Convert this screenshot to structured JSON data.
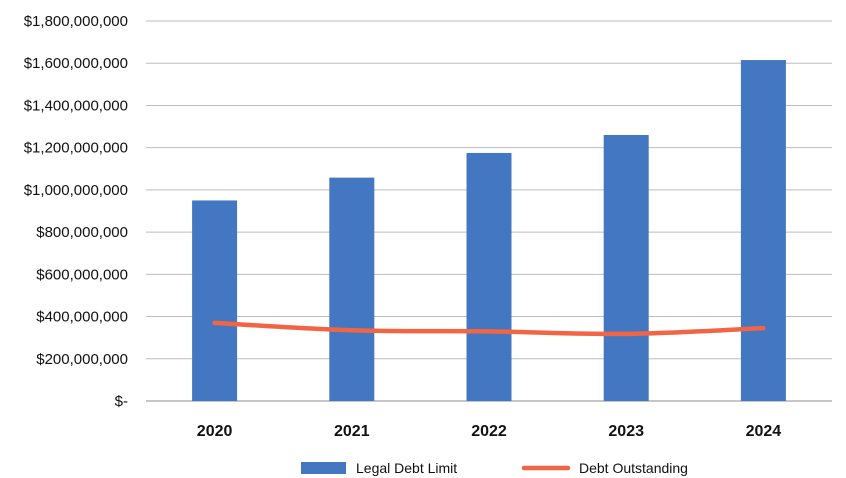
{
  "chart_data": {
    "type": "bar",
    "categories": [
      "2020",
      "2021",
      "2022",
      "2023",
      "2024"
    ],
    "ylim": [
      0,
      1800000000
    ],
    "y_ticks": [
      {
        "value": 0,
        "label": "$-"
      },
      {
        "value": 200000000,
        "label": "$200,000,000"
      },
      {
        "value": 400000000,
        "label": "$400,000,000"
      },
      {
        "value": 600000000,
        "label": "$600,000,000"
      },
      {
        "value": 800000000,
        "label": "$800,000,000"
      },
      {
        "value": 1000000000,
        "label": "$1,000,000,000"
      },
      {
        "value": 1200000000,
        "label": "$1,200,000,000"
      },
      {
        "value": 1400000000,
        "label": "$1,400,000,000"
      },
      {
        "value": 1600000000,
        "label": "$1,600,000,000"
      },
      {
        "value": 1800000000,
        "label": "$1,800,000,000"
      }
    ],
    "grid": true,
    "legend_position": "bottom",
    "series": [
      {
        "name": "Legal Debt Limit",
        "type": "bar",
        "color": "#4477C1",
        "values": [
          950000000,
          1058000000,
          1175000000,
          1260000000,
          1615000000
        ]
      },
      {
        "name": "Debt Outstanding",
        "type": "line",
        "color": "#F26544",
        "values": [
          370000000,
          335000000,
          330000000,
          318000000,
          345000000
        ]
      }
    ]
  }
}
